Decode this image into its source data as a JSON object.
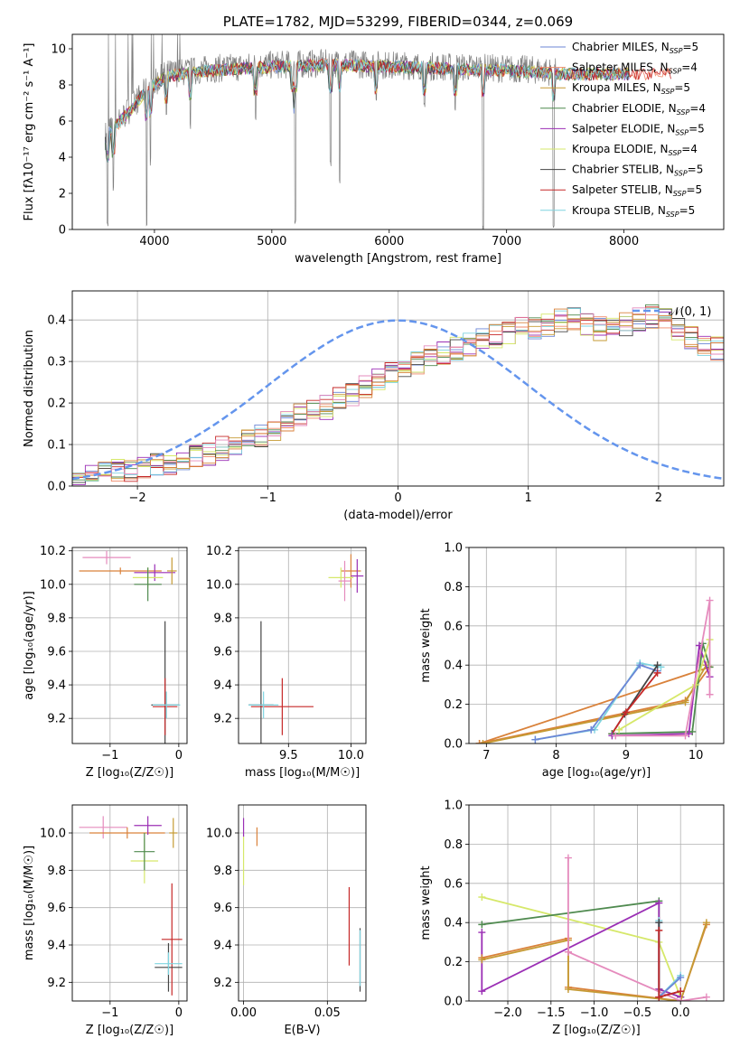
{
  "colors": {
    "Chabrier MILES": "#6b86d6",
    "Salpeter MILES": "#f08a6a",
    "Kroupa MILES": "#c59a33",
    "Chabrier ELODIE": "#4f8a4f",
    "Salpeter ELODIE": "#9b2fb5",
    "Kroupa ELODIE": "#d6e86a",
    "Chabrier STELIB": "#444444",
    "Salpeter STELIB": "#c62828",
    "Kroupa STELIB": "#7fd4e0",
    "pink": "#e58bbd",
    "orange": "#d9823b",
    "normal_curve": "#6495ed"
  },
  "chart_data": [
    {
      "id": "spectrum",
      "type": "line",
      "title": "PLATE=1782, MJD=53299, FIBERID=0344, z=0.069",
      "xlabel": "wavelength [Angstrom, rest frame]",
      "ylabel": "Flux [fλ10⁻¹⁷ erg cm⁻² s⁻¹ A⁻¹]",
      "xlim": [
        3300,
        8850
      ],
      "ylim": [
        0,
        10.8
      ],
      "xticks": [
        4000,
        5000,
        6000,
        7000,
        8000
      ],
      "yticks": [
        0,
        2,
        4,
        6,
        8,
        10
      ],
      "legend_position": "right",
      "legend": [
        {
          "label": "Chabrier MILES, NSSP=5",
          "color": "#6b86d6"
        },
        {
          "label": "Salpeter MILES, NSSP=4",
          "color": "#f08a6a"
        },
        {
          "label": "Kroupa MILES, NSSP=5",
          "color": "#c59a33"
        },
        {
          "label": "Chabrier ELODIE, NSSP=4",
          "color": "#4f8a4f"
        },
        {
          "label": "Salpeter ELODIE, NSSP=5",
          "color": "#9b2fb5"
        },
        {
          "label": "Kroupa ELODIE, NSSP=4",
          "color": "#d6e86a"
        },
        {
          "label": "Chabrier STELIB, NSSP=5",
          "color": "#444444"
        },
        {
          "label": "Salpeter STELIB, NSSP=5",
          "color": "#c62828"
        },
        {
          "label": "Kroupa STELIB, NSSP=5",
          "color": "#7fd4e0"
        }
      ],
      "data_series": {
        "name": "data",
        "x_range": [
          3580,
          7420
        ],
        "continuum": [
          [
            3580,
            5.2
          ],
          [
            3700,
            6.0
          ],
          [
            3900,
            7.5
          ],
          [
            4100,
            8.6
          ],
          [
            4500,
            8.9
          ],
          [
            5000,
            9.1
          ],
          [
            5500,
            9.2
          ],
          [
            6000,
            9.1
          ],
          [
            6500,
            9.0
          ],
          [
            7000,
            8.9
          ],
          [
            7300,
            8.8
          ],
          [
            7420,
            8.7
          ]
        ],
        "absorption_dips": [
          [
            3600,
            0.0
          ],
          [
            3650,
            2.0
          ],
          [
            3933,
            0.0
          ],
          [
            3968,
            3.5
          ],
          [
            4102,
            6.0
          ],
          [
            4305,
            5.5
          ],
          [
            4861,
            6.0
          ],
          [
            5175,
            7.5
          ],
          [
            5200,
            0.2
          ],
          [
            5500,
            3.5
          ],
          [
            5577,
            2.5
          ],
          [
            5890,
            7.0
          ],
          [
            6300,
            6.5
          ],
          [
            6563,
            6.5
          ],
          [
            6800,
            0.0
          ],
          [
            7400,
            0.0
          ]
        ]
      }
    },
    {
      "id": "residuals",
      "type": "bar",
      "xlabel": "(data-model)/error",
      "ylabel": "Normed distribution",
      "xlim": [
        -2.5,
        2.5
      ],
      "ylim": [
        0,
        0.47
      ],
      "xticks": [
        -2,
        -1,
        0,
        1,
        2
      ],
      "xtick_labels": [
        "−2",
        "−1",
        "0",
        "1",
        "2"
      ],
      "yticks": [
        0.0,
        0.1,
        0.2,
        0.3,
        0.4
      ],
      "ytick_labels": [
        "0.0",
        "0.1",
        "0.2",
        "0.3",
        "0.4"
      ],
      "grid": true,
      "legend_position": "top-right",
      "legend": [
        {
          "label": "𝒩(0, 1)",
          "color": "#6495ed",
          "style": "dashed"
        }
      ],
      "normal_curve": {
        "mean": 0,
        "sigma": 1
      },
      "histogram": {
        "bin_width": 0.1,
        "bin_start": -2.5,
        "base_values": [
          0.02,
          0.025,
          0.03,
          0.035,
          0.04,
          0.045,
          0.05,
          0.055,
          0.06,
          0.07,
          0.08,
          0.09,
          0.1,
          0.11,
          0.12,
          0.14,
          0.15,
          0.17,
          0.18,
          0.19,
          0.21,
          0.22,
          0.24,
          0.26,
          0.27,
          0.29,
          0.3,
          0.31,
          0.32,
          0.33,
          0.34,
          0.35,
          0.36,
          0.37,
          0.38,
          0.38,
          0.39,
          0.4,
          0.4,
          0.39,
          0.38,
          0.38,
          0.39,
          0.4,
          0.41,
          0.4,
          0.38,
          0.36,
          0.34,
          0.33,
          0.32,
          0.3,
          0.29,
          0.28,
          0.26,
          0.24,
          0.22,
          0.2,
          0.19,
          0.17,
          0.15,
          0.14,
          0.13,
          0.12,
          0.11,
          0.1,
          0.09,
          0.08,
          0.07,
          0.065,
          0.06,
          0.055,
          0.05,
          0.045,
          0.04,
          0.035,
          0.03,
          0.03,
          0.025,
          0.02,
          0.02,
          0.02,
          0.02,
          0.03,
          0.03,
          0.025,
          0.02,
          0.02,
          0.02,
          0.02
        ],
        "series_colors": [
          "#6b86d6",
          "#f08a6a",
          "#c59a33",
          "#4f8a4f",
          "#9b2fb5",
          "#d6e86a",
          "#444444",
          "#c62828",
          "#7fd4e0",
          "#e58bbd",
          "#d9823b"
        ]
      }
    },
    {
      "id": "age_vs_Z",
      "type": "scatter",
      "xlabel": "Z [log₁₀(Z/Z☉)]",
      "ylabel": "age  [log₁₀(age/yr)]",
      "xlim": [
        -1.55,
        0.12
      ],
      "ylim": [
        9.05,
        10.22
      ],
      "xticks": [
        -1,
        0
      ],
      "xtick_labels": [
        "−1",
        "0"
      ],
      "yticks": [
        9.2,
        9.4,
        9.6,
        9.8,
        10.0,
        10.2
      ],
      "ytick_labels": [
        "9.2",
        "9.4",
        "9.6",
        "9.8",
        "10.0",
        "10.2"
      ],
      "grid": true,
      "errorbars": [
        {
          "x": -1.05,
          "y": 10.16,
          "xerr": 0.35,
          "yerr": 0.04,
          "color": "#e58bbd"
        },
        {
          "x": -0.85,
          "y": 10.08,
          "xerr": 0.6,
          "yerr": 0.02,
          "color": "#d9823b"
        },
        {
          "x": -0.35,
          "y": 10.07,
          "xerr": 0.3,
          "yerr": 0.05,
          "color": "#9b2fb5"
        },
        {
          "x": -0.45,
          "y": 10.04,
          "xerr": 0.22,
          "yerr": 0.06,
          "color": "#d6e86a"
        },
        {
          "x": -0.45,
          "y": 10.0,
          "xerr": 0.2,
          "yerr": 0.1,
          "color": "#4f8a4f"
        },
        {
          "x": -0.1,
          "y": 10.08,
          "xerr": 0.07,
          "yerr": 0.08,
          "color": "#c59a33"
        },
        {
          "x": -0.2,
          "y": 9.28,
          "xerr": 0.2,
          "yerr": 0.5,
          "color": "#444444"
        },
        {
          "x": -0.2,
          "y": 9.27,
          "xerr": 0.18,
          "yerr": 0.17,
          "color": "#c62828"
        },
        {
          "x": -0.18,
          "y": 9.28,
          "xerr": 0.2,
          "yerr": 0.08,
          "color": "#7fd4e0"
        }
      ]
    },
    {
      "id": "age_vs_mass",
      "type": "scatter",
      "xlabel": "mass [log₁₀(M/M☉)]",
      "ylabel": "",
      "xlim": [
        9.1,
        10.12
      ],
      "ylim": [
        9.05,
        10.22
      ],
      "xticks": [
        9.5,
        10.0
      ],
      "xtick_labels": [
        "9.5",
        "10.0"
      ],
      "yticks": [
        9.2,
        9.4,
        9.6,
        9.8,
        10.0,
        10.2
      ],
      "ytick_labels": [
        "9.2",
        "9.4",
        "9.6",
        "9.8",
        "10.0",
        "10.2"
      ],
      "grid": true,
      "errorbars": [
        {
          "x": 10.0,
          "y": 10.08,
          "xerr": 0.08,
          "yerr": 0.1,
          "color": "#d9823b"
        },
        {
          "x": 10.05,
          "y": 10.05,
          "xerr": 0.05,
          "yerr": 0.1,
          "color": "#9b2fb5"
        },
        {
          "x": 9.92,
          "y": 10.04,
          "xerr": 0.1,
          "yerr": 0.06,
          "color": "#d6e86a"
        },
        {
          "x": 9.95,
          "y": 10.02,
          "xerr": 0.05,
          "yerr": 0.12,
          "color": "#e58bbd"
        },
        {
          "x": 9.28,
          "y": 9.28,
          "xerr": 0.1,
          "yerr": 0.5,
          "color": "#444444"
        },
        {
          "x": 9.45,
          "y": 9.27,
          "xerr": 0.25,
          "yerr": 0.17,
          "color": "#c62828"
        },
        {
          "x": 9.3,
          "y": 9.28,
          "xerr": 0.12,
          "yerr": 0.08,
          "color": "#7fd4e0"
        }
      ]
    },
    {
      "id": "weight_vs_age",
      "type": "line",
      "xlabel": "age  [log₁₀(age/yr)]",
      "ylabel": "mass weight",
      "xlim": [
        6.75,
        10.4
      ],
      "ylim": [
        0,
        1.0
      ],
      "xticks": [
        7,
        8,
        9,
        10
      ],
      "xtick_labels": [
        "7",
        "8",
        "9",
        "10"
      ],
      "yticks": [
        0.0,
        0.2,
        0.4,
        0.6,
        0.8,
        1.0
      ],
      "ytick_labels": [
        "0.0",
        "0.2",
        "0.4",
        "0.6",
        "0.8",
        "1.0"
      ],
      "grid": true,
      "series": [
        {
          "color": "#d9823b",
          "x": [
            6.9,
            9.85,
            10.2,
            6.9
          ],
          "y": [
            0.0,
            0.22,
            0.39,
            0.0
          ]
        },
        {
          "color": "#c59a33",
          "x": [
            6.95,
            9.85,
            10.15
          ],
          "y": [
            0.0,
            0.21,
            0.4
          ]
        },
        {
          "color": "#7fd4e0",
          "x": [
            7.7,
            8.55,
            9.2,
            9.5
          ],
          "y": [
            0.02,
            0.07,
            0.41,
            0.39
          ]
        },
        {
          "color": "#6b86d6",
          "x": [
            7.7,
            8.5,
            9.2,
            9.45
          ],
          "y": [
            0.02,
            0.07,
            0.4,
            0.37
          ]
        },
        {
          "color": "#444444",
          "x": [
            8.8,
            8.98,
            9.45
          ],
          "y": [
            0.05,
            0.15,
            0.4
          ]
        },
        {
          "color": "#c62828",
          "x": [
            8.8,
            9.0,
            9.45
          ],
          "y": [
            0.05,
            0.16,
            0.36
          ]
        },
        {
          "color": "#4f8a4f",
          "x": [
            8.8,
            9.95,
            10.1,
            10.2
          ],
          "y": [
            0.05,
            0.06,
            0.51,
            0.39
          ]
        },
        {
          "color": "#9b2fb5",
          "x": [
            8.8,
            9.9,
            10.05,
            10.2
          ],
          "y": [
            0.04,
            0.05,
            0.5,
            0.34
          ]
        },
        {
          "color": "#d6e86a",
          "x": [
            8.9,
            10.0,
            10.2
          ],
          "y": [
            0.07,
            0.3,
            0.53
          ]
        },
        {
          "color": "#e58bbd",
          "x": [
            8.85,
            9.85,
            10.2,
            10.2
          ],
          "y": [
            0.04,
            0.04,
            0.73,
            0.25
          ]
        }
      ]
    },
    {
      "id": "mass_vs_Z",
      "type": "scatter",
      "xlabel": "Z [log₁₀(Z/Z☉)]",
      "ylabel": "mass [log₁₀(M/M☉)]",
      "xlim": [
        -1.55,
        0.12
      ],
      "ylim": [
        9.1,
        10.15
      ],
      "xticks": [
        -1,
        0
      ],
      "xtick_labels": [
        "−1",
        "0"
      ],
      "yticks": [
        9.2,
        9.4,
        9.6,
        9.8,
        10.0
      ],
      "ytick_labels": [
        "9.2",
        "9.4",
        "9.6",
        "9.8",
        "10.0"
      ],
      "grid": true,
      "errorbars": [
        {
          "x": -1.1,
          "y": 10.03,
          "xerr": 0.35,
          "yerr": 0.06,
          "color": "#e58bbd"
        },
        {
          "x": -0.75,
          "y": 10.0,
          "xerr": 0.55,
          "yerr": 0.03,
          "color": "#d9823b"
        },
        {
          "x": -0.45,
          "y": 10.04,
          "xerr": 0.2,
          "yerr": 0.05,
          "color": "#9b2fb5"
        },
        {
          "x": -0.5,
          "y": 9.85,
          "xerr": 0.2,
          "yerr": 0.12,
          "color": "#d6e86a"
        },
        {
          "x": -0.5,
          "y": 9.9,
          "xerr": 0.15,
          "yerr": 0.1,
          "color": "#4f8a4f"
        },
        {
          "x": -0.08,
          "y": 10.0,
          "xerr": 0.06,
          "yerr": 0.08,
          "color": "#c59a33"
        },
        {
          "x": -0.1,
          "y": 9.43,
          "xerr": 0.15,
          "yerr": 0.3,
          "color": "#c62828"
        },
        {
          "x": -0.15,
          "y": 9.28,
          "xerr": 0.2,
          "yerr": 0.13,
          "color": "#444444"
        },
        {
          "x": -0.15,
          "y": 9.3,
          "xerr": 0.2,
          "yerr": 0.06,
          "color": "#7fd4e0"
        }
      ]
    },
    {
      "id": "mass_vs_EBV",
      "type": "scatter",
      "xlabel": "E(B-V)",
      "ylabel": "",
      "xlim": [
        -0.003,
        0.073
      ],
      "ylim": [
        9.1,
        10.15
      ],
      "xticks": [
        0.0,
        0.05
      ],
      "xtick_labels": [
        "0.00",
        "0.05"
      ],
      "yticks": [
        9.2,
        9.4,
        9.6,
        9.8,
        10.0
      ],
      "ytick_labels": [
        "9.2",
        "9.4",
        "9.6",
        "9.8",
        "10.0"
      ],
      "grid": true,
      "errorbars": [
        {
          "x": 0.0,
          "y": 10.03,
          "xerr": 0,
          "yerr": 0.05,
          "color": "#9b2fb5"
        },
        {
          "x": 0.0,
          "y": 9.85,
          "xerr": 0,
          "yerr": 0.13,
          "color": "#d6e86a"
        },
        {
          "x": 0.008,
          "y": 9.98,
          "xerr": 0,
          "yerr": 0.05,
          "color": "#d9823b"
        },
        {
          "x": 0.063,
          "y": 9.5,
          "xerr": 0,
          "yerr": 0.21,
          "color": "#c62828"
        },
        {
          "x": 0.0695,
          "y": 9.32,
          "xerr": 0,
          "yerr": 0.17,
          "color": "#444444"
        },
        {
          "x": 0.0695,
          "y": 9.33,
          "xerr": 0,
          "yerr": 0.15,
          "color": "#7fd4e0"
        }
      ]
    },
    {
      "id": "weight_vs_Z",
      "type": "line",
      "xlabel": "Z [log₁₀(Z/Z☉)]",
      "ylabel": "mass weight",
      "xlim": [
        -2.45,
        0.5
      ],
      "ylim": [
        0,
        1.0
      ],
      "xticks": [
        -2.0,
        -1.5,
        -1.0,
        -0.5,
        0.0
      ],
      "xtick_labels": [
        "−2.0",
        "−1.5",
        "−1.0",
        "−0.5",
        "0.0"
      ],
      "yticks": [
        0.0,
        0.2,
        0.4,
        0.6,
        0.8,
        1.0
      ],
      "ytick_labels": [
        "0.0",
        "0.2",
        "0.4",
        "0.6",
        "0.8",
        "1.0"
      ],
      "grid": true,
      "series": [
        {
          "color": "#d6e86a",
          "x": [
            -2.3,
            -0.25,
            0.0
          ],
          "y": [
            0.53,
            0.3,
            0.02
          ]
        },
        {
          "color": "#4f8a4f",
          "x": [
            -2.3,
            -0.25,
            -0.25,
            0.0
          ],
          "y": [
            0.39,
            0.51,
            0.06,
            0.02
          ]
        },
        {
          "color": "#9b2fb5",
          "x": [
            -2.3,
            -2.3,
            -0.25,
            -0.25,
            0.0
          ],
          "y": [
            0.35,
            0.05,
            0.5,
            0.06,
            0.02
          ]
        },
        {
          "color": "#d9823b",
          "x": [
            -2.3,
            -1.3,
            -1.3,
            0.0,
            0.3
          ],
          "y": [
            0.22,
            0.32,
            0.07,
            0.0,
            0.39
          ]
        },
        {
          "color": "#c59a33",
          "x": [
            -2.3,
            -1.3,
            -1.3,
            0.0,
            0.3
          ],
          "y": [
            0.21,
            0.31,
            0.06,
            0.0,
            0.4
          ]
        },
        {
          "color": "#e58bbd",
          "x": [
            -1.3,
            -1.3,
            -1.3,
            0.0,
            0.0,
            0.3
          ],
          "y": [
            0.73,
            0.25,
            0.25,
            0.0,
            0.0,
            0.02
          ]
        },
        {
          "color": "#7fd4e0",
          "x": [
            -0.25,
            -0.25,
            0.0
          ],
          "y": [
            0.41,
            0.02,
            0.13
          ]
        },
        {
          "color": "#6b86d6",
          "x": [
            -0.25,
            -0.25,
            0.0
          ],
          "y": [
            0.4,
            0.02,
            0.12
          ]
        },
        {
          "color": "#444444",
          "x": [
            -0.25,
            -0.25,
            0.0
          ],
          "y": [
            0.4,
            0.02,
            0.05
          ]
        },
        {
          "color": "#c62828",
          "x": [
            -0.25,
            -0.25,
            0.0
          ],
          "y": [
            0.36,
            0.02,
            0.05
          ]
        }
      ]
    }
  ]
}
